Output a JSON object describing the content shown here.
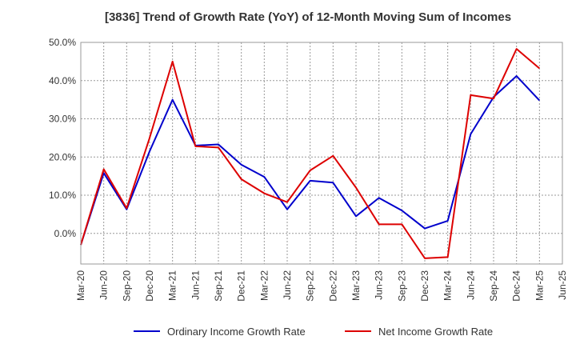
{
  "chart_data": {
    "type": "line",
    "title": "[3836]  Trend of Growth Rate (YoY) of 12-Month Moving Sum of Incomes",
    "xlabel": "",
    "ylabel": "",
    "categories": [
      "Mar-20",
      "Jun-20",
      "Sep-20",
      "Dec-20",
      "Mar-21",
      "Jun-21",
      "Sep-21",
      "Dec-21",
      "Mar-22",
      "Jun-22",
      "Sep-22",
      "Dec-22",
      "Mar-23",
      "Jun-23",
      "Sep-23",
      "Dec-23",
      "Mar-24",
      "Jun-24",
      "Sep-24",
      "Dec-24",
      "Mar-25",
      "Jun-25"
    ],
    "ylim": [
      -8,
      50
    ],
    "yticks": [
      0,
      10,
      20,
      30,
      40,
      50
    ],
    "ytick_labels": [
      "0.0%",
      "10.0%",
      "20.0%",
      "30.0%",
      "40.0%",
      "50.0%"
    ],
    "grid": true,
    "legend_position": "bottom",
    "series": [
      {
        "name": "Ordinary Income Growth Rate",
        "color": "#0000cc",
        "values": [
          -3.0,
          15.8,
          6.3,
          21.5,
          35.0,
          23.0,
          23.3,
          18.0,
          14.8,
          6.3,
          13.8,
          13.3,
          4.5,
          9.3,
          6.0,
          1.3,
          3.3,
          26.0,
          35.7,
          41.2,
          34.8,
          null
        ]
      },
      {
        "name": "Net Income Growth Rate",
        "color": "#dd0000",
        "values": [
          -3.0,
          16.8,
          6.6,
          25.0,
          45.0,
          22.8,
          22.5,
          14.2,
          10.5,
          8.2,
          16.5,
          20.3,
          12.0,
          2.4,
          2.4,
          -6.5,
          -6.2,
          36.2,
          35.3,
          48.3,
          43.2,
          null
        ]
      }
    ]
  }
}
